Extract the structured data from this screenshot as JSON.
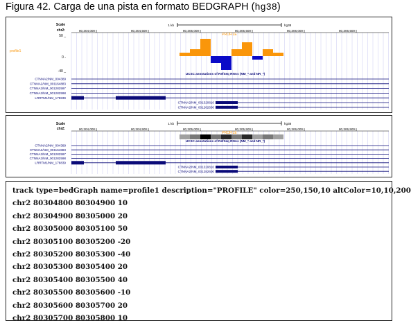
{
  "caption": {
    "text": "Figura 42. Carga de una pista en formato BEDGRAPH (",
    "genome": "hg38",
    "close": ")"
  },
  "browser": {
    "scale_label": "Scale",
    "chrom_label": "chr2:",
    "scalebar_text": "1 kb",
    "assembly": "hg38",
    "positions": [
      "80,304,000",
      "80,304,500",
      "80,305,000",
      "80,305,500",
      "80,306,000",
      "80,306,500"
    ],
    "track_name": "PROFILE",
    "side_label": "profile1",
    "axis_ticks": [
      "50 _",
      "0 -",
      "-40 _"
    ],
    "annotation_title": "UCSC annotations of RefSeq RNAs (NM_* and NR_*)",
    "genes_left": [
      "CTNNA2/NM_004389",
      "CTNNA2/NM_001164883",
      "CTNNA2/NM_001282597",
      "CTNNA2/NM_001282598",
      "LRRTM1/NM_178839"
    ],
    "genes_right": [
      "CTNNA2/NM_001320810",
      "CTNNA2/NM_001282600"
    ],
    "colors": {
      "positive": "#FA960A",
      "negative": "#0A0AC8",
      "gene": "#0A0A78",
      "grid": "#C8C8F0"
    }
  },
  "chart_data": {
    "type": "bar",
    "title": "PROFILE",
    "x_unit": "chr2 position",
    "y_axis_ticks": [
      50,
      0,
      -40
    ],
    "ylim": [
      -40,
      50
    ],
    "intervals": [
      {
        "start": 80304800,
        "end": 80304900,
        "value": 10
      },
      {
        "start": 80304900,
        "end": 80305000,
        "value": 20
      },
      {
        "start": 80305000,
        "end": 80305100,
        "value": 50
      },
      {
        "start": 80305100,
        "end": 80305200,
        "value": -20
      },
      {
        "start": 80305200,
        "end": 80305300,
        "value": -40
      },
      {
        "start": 80305300,
        "end": 80305400,
        "value": 20
      },
      {
        "start": 80305400,
        "end": 80305500,
        "value": 40
      },
      {
        "start": 80305500,
        "end": 80305600,
        "value": -10
      },
      {
        "start": 80305600,
        "end": 80305700,
        "value": 20
      },
      {
        "start": 80305700,
        "end": 80305800,
        "value": 10
      }
    ]
  },
  "bedgraph": {
    "lines": [
      "track type=bedGraph name=profile1 description=\"PROFILE\" color=250,150,10 altColor=10,10,200",
      "chr2 80304800 80304900 10",
      "chr2 80304900 80305000 20",
      "chr2 80305000 80305100 50",
      "chr2 80305100 80305200 -20",
      "chr2 80305200 80305300 -40",
      "chr2 80305300 80305400 20",
      "chr2 80305400 80305500 40",
      "chr2 80305500 80305600 -10",
      "chr2 80305600 80305700 20",
      "chr2 80305700 80305800 10"
    ]
  }
}
